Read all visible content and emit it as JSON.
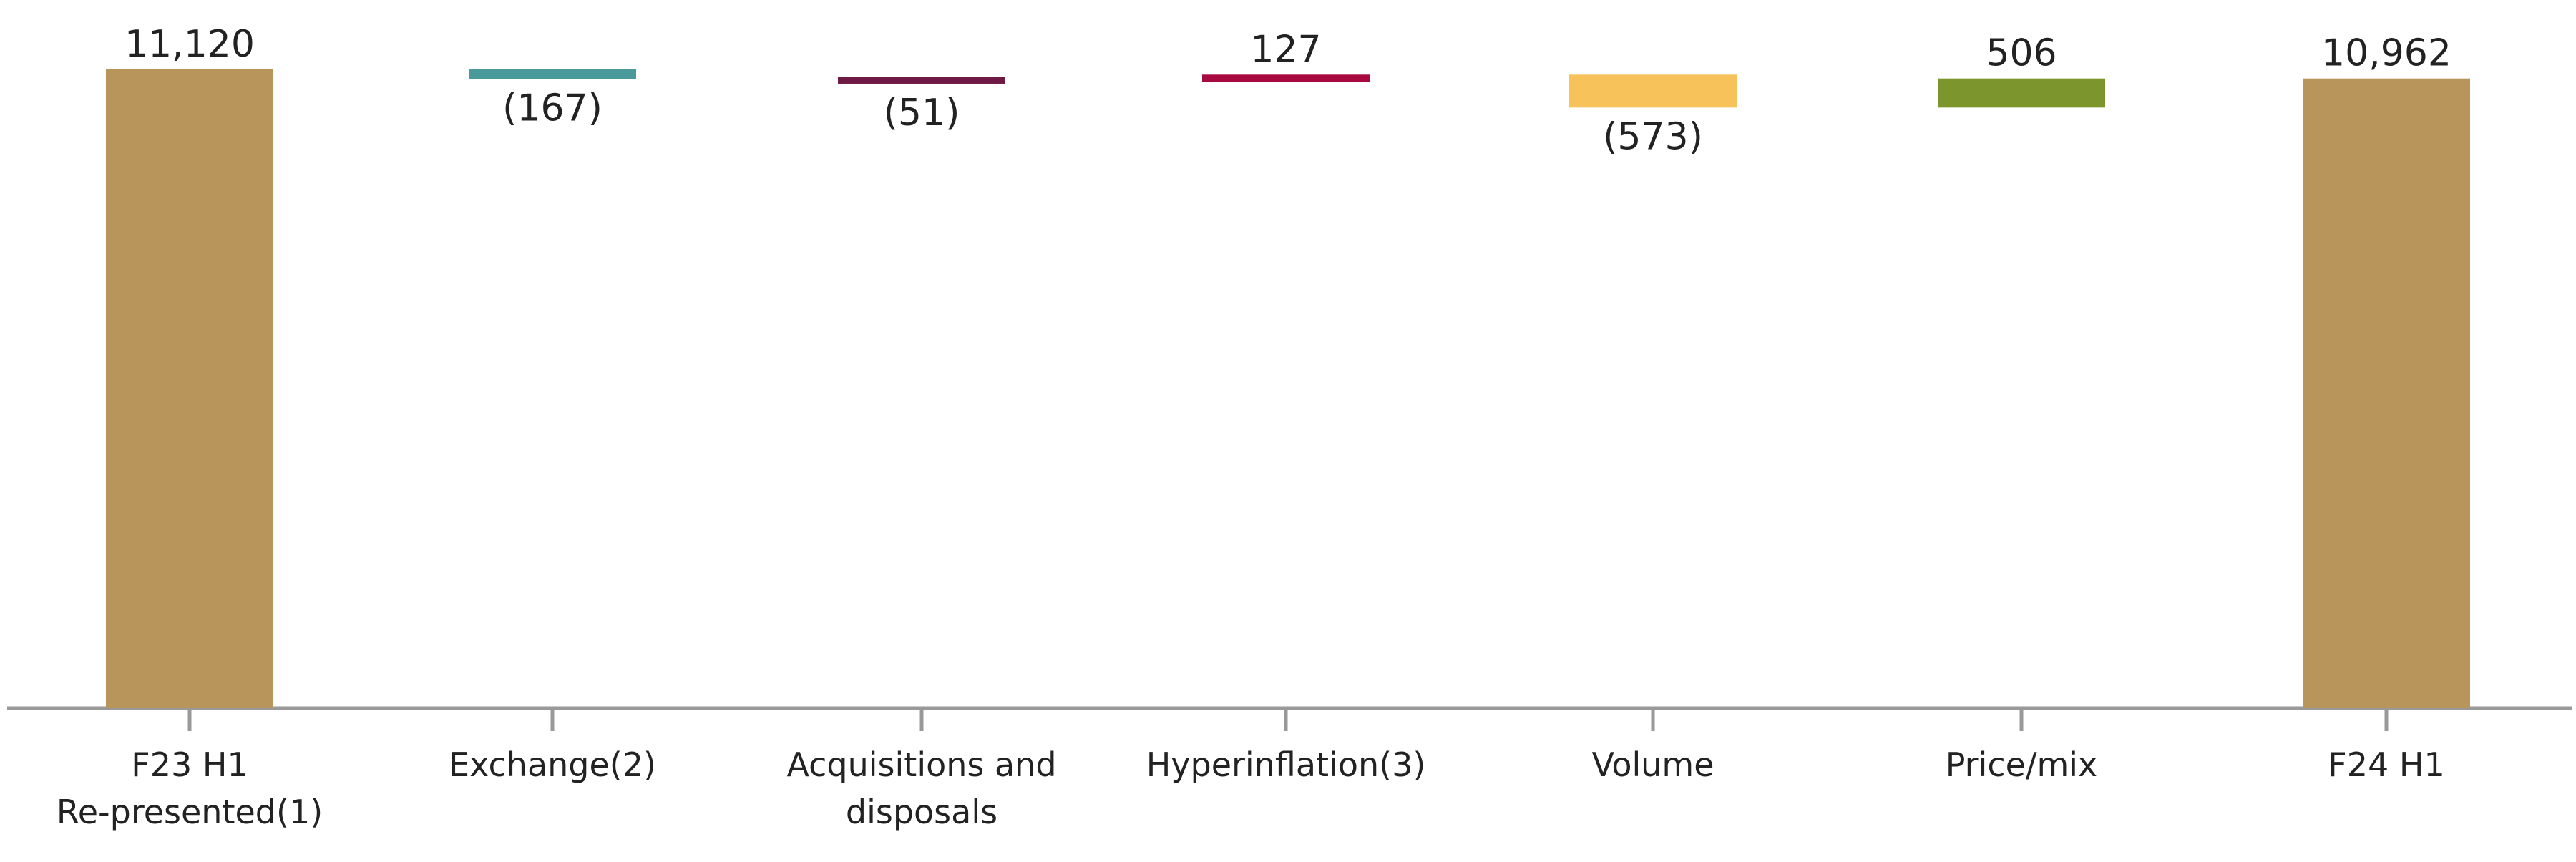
{
  "chart_data": {
    "type": "bar",
    "subtype": "waterfall",
    "title": "",
    "xlabel": "",
    "ylabel": "",
    "ylim": [
      0,
      11500
    ],
    "grid": false,
    "legend": "none",
    "axis_color": "#999999",
    "bars": [
      {
        "label": [
          "F23 H1",
          "Re-presented(1)"
        ],
        "kind": "total",
        "value": 11120,
        "value_label": "11,120",
        "color": "#B8955A"
      },
      {
        "label": [
          "Exchange(2)"
        ],
        "kind": "delta",
        "value": -167,
        "value_label": "(167)",
        "color": "#4A9A9C"
      },
      {
        "label": [
          "Acquisitions and",
          "disposals"
        ],
        "kind": "delta",
        "value": -51,
        "value_label": "(51)",
        "color": "#6E1A45"
      },
      {
        "label": [
          "Hyperinflation(3)"
        ],
        "kind": "delta",
        "value": 127,
        "value_label": "127",
        "color": "#A8093F"
      },
      {
        "label": [
          "Volume"
        ],
        "kind": "delta",
        "value": -573,
        "value_label": "(573)",
        "color": "#F7C25A"
      },
      {
        "label": [
          "Price/mix"
        ],
        "kind": "delta",
        "value": 506,
        "value_label": "506",
        "color": "#7C962D"
      },
      {
        "label": [
          "F24 H1"
        ],
        "kind": "total",
        "value": 10962,
        "value_label": "10,962",
        "color": "#B8955A"
      }
    ]
  }
}
